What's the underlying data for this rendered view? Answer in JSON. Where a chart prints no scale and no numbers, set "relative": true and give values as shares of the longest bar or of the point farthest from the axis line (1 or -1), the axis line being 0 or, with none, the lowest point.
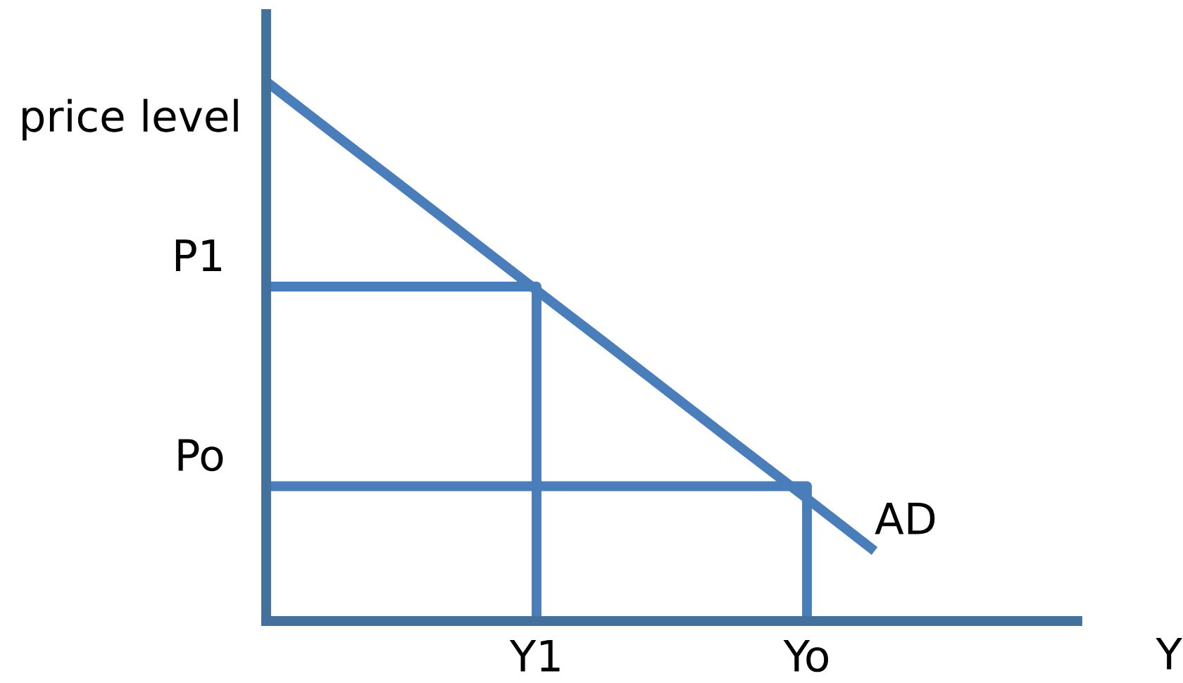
{
  "chart_data": {
    "type": "line",
    "relative": true,
    "ylabel": "price level",
    "xlabel": "Y",
    "categories": [
      null,
      null,
      null,
      null,
      "Y1",
      null,
      null,
      null,
      "Yo",
      null,
      null,
      null,
      null
    ],
    "series": [
      {
        "name": "AD",
        "color": "#4a7ebb",
        "values": [
          1,
          0.903,
          0.807,
          0.71,
          0.613,
          0.517,
          0.42,
          0.323,
          0.227,
          0.13,
          null,
          null,
          null
        ]
      },
      {
        "type": "step",
        "name": "P1",
        "color": "#4a7ebb",
        "values": [
          0.62,
          0.62,
          0.62,
          0.62,
          0,
          null,
          null,
          null,
          null,
          null,
          null,
          null,
          null
        ]
      },
      {
        "type": "step",
        "name": "Po",
        "color": "#4a7ebb",
        "values": [
          0.25,
          0.25,
          0.25,
          0.25,
          0.25,
          0.25,
          0.25,
          0.25,
          0,
          null,
          null,
          null,
          null
        ]
      }
    ]
  }
}
